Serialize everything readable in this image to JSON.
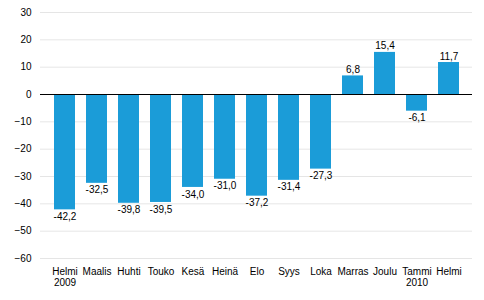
{
  "chart_data": {
    "type": "bar",
    "categories": [
      "Helmi",
      "Maalis",
      "Huhti",
      "Touko",
      "Kesä",
      "Heinä",
      "Elo",
      "Syys",
      "Loka",
      "Marras",
      "Joulu",
      "Tammi",
      "Helmi"
    ],
    "values": [
      -42.2,
      -32.5,
      -39.8,
      -39.5,
      -34.0,
      -31.0,
      -37.2,
      -31.4,
      -27.3,
      6.8,
      15.4,
      -6.1,
      11.7
    ],
    "value_labels": [
      "-42,2",
      "-32,5",
      "-39,8",
      "-39,5",
      "-34,0",
      "-31,0",
      "-37,2",
      "-31,4",
      "-27,3",
      "6,8",
      "15,4",
      "-6,1",
      "11,7"
    ],
    "data_labels": true,
    "color": "#1b9cd8",
    "ylim": [
      -60,
      30
    ],
    "yticks": [
      -60,
      -50,
      -40,
      -30,
      -20,
      -10,
      0,
      10,
      20,
      30
    ],
    "grid": true,
    "annotations": [
      {
        "text": "2009",
        "index": 0
      },
      {
        "text": "2010",
        "index": 11
      }
    ]
  }
}
